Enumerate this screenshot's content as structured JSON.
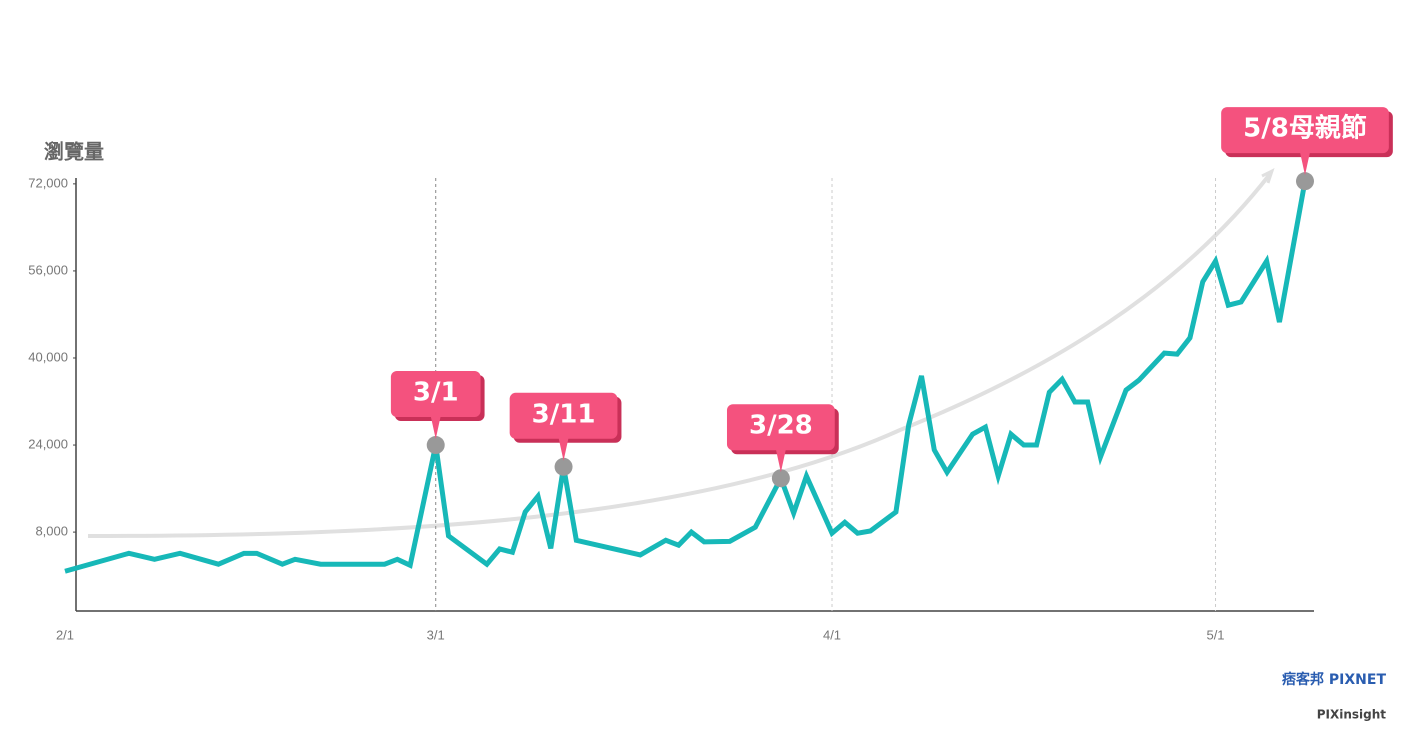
{
  "chart_data": {
    "type": "line",
    "y_label": "瀏覽量",
    "x": [
      0,
      5,
      7,
      9,
      12,
      14,
      15,
      17,
      18,
      20,
      25,
      26,
      27,
      29,
      30,
      33,
      34,
      35,
      36,
      37,
      38,
      39,
      40,
      45,
      47,
      48,
      49,
      50,
      52,
      54,
      56,
      57,
      58,
      60,
      61,
      62,
      63,
      65,
      66,
      67,
      68,
      69,
      71,
      72,
      73,
      74,
      75,
      76,
      77,
      78,
      79,
      80,
      81,
      83,
      84,
      86,
      87,
      88,
      89,
      90,
      91,
      92,
      94,
      95,
      97
    ],
    "series": [
      {
        "color": "#17b8b8",
        "values": [
          800,
          4100,
          3000,
          4100,
          2100,
          4100,
          4100,
          2100,
          3000,
          2100,
          2100,
          3000,
          1900,
          24000,
          7300,
          2100,
          4900,
          4300,
          11700,
          14600,
          5000,
          20000,
          6500,
          3800,
          6500,
          5600,
          8000,
          6200,
          6300,
          8900,
          17900,
          11500,
          18300,
          7800,
          9800,
          7800,
          8200,
          11700,
          27700,
          36700,
          23100,
          19000,
          26000,
          27300,
          18300,
          26000,
          24000,
          24000,
          33700,
          36100,
          31900,
          31900,
          21800,
          34100,
          35900,
          40900,
          40700,
          43700,
          54000,
          57800,
          49700,
          50300,
          57800,
          46600,
          72500
        ]
      }
    ],
    "xlim": [
      0,
      97
    ],
    "xticks": [
      {
        "value": 0,
        "label": "2/1"
      },
      {
        "value": 29,
        "label": "3/1"
      },
      {
        "value": 60,
        "label": "4/1"
      },
      {
        "value": 90,
        "label": "5/1"
      }
    ],
    "ylim": [
      -6500,
      73500
    ],
    "yticks": [
      {
        "value": 8000,
        "label": "8,000"
      },
      {
        "value": 24000,
        "label": "24,000"
      },
      {
        "value": 40000,
        "label": "40,000"
      },
      {
        "value": 56000,
        "label": "56,000"
      },
      {
        "value": 72000,
        "label": "72,000"
      }
    ],
    "grid_x": true,
    "annotations": [
      {
        "text": "3/1",
        "x": 29,
        "y": 24000
      },
      {
        "text": "3/11",
        "x": 39,
        "y": 20000
      },
      {
        "text": "3/28",
        "x": 56,
        "y": 17900
      },
      {
        "text": "5/8母親節",
        "x": 97,
        "y": 72500
      }
    ],
    "credits": [
      "痞客邦 PIXNET",
      "PIXinsight"
    ]
  }
}
